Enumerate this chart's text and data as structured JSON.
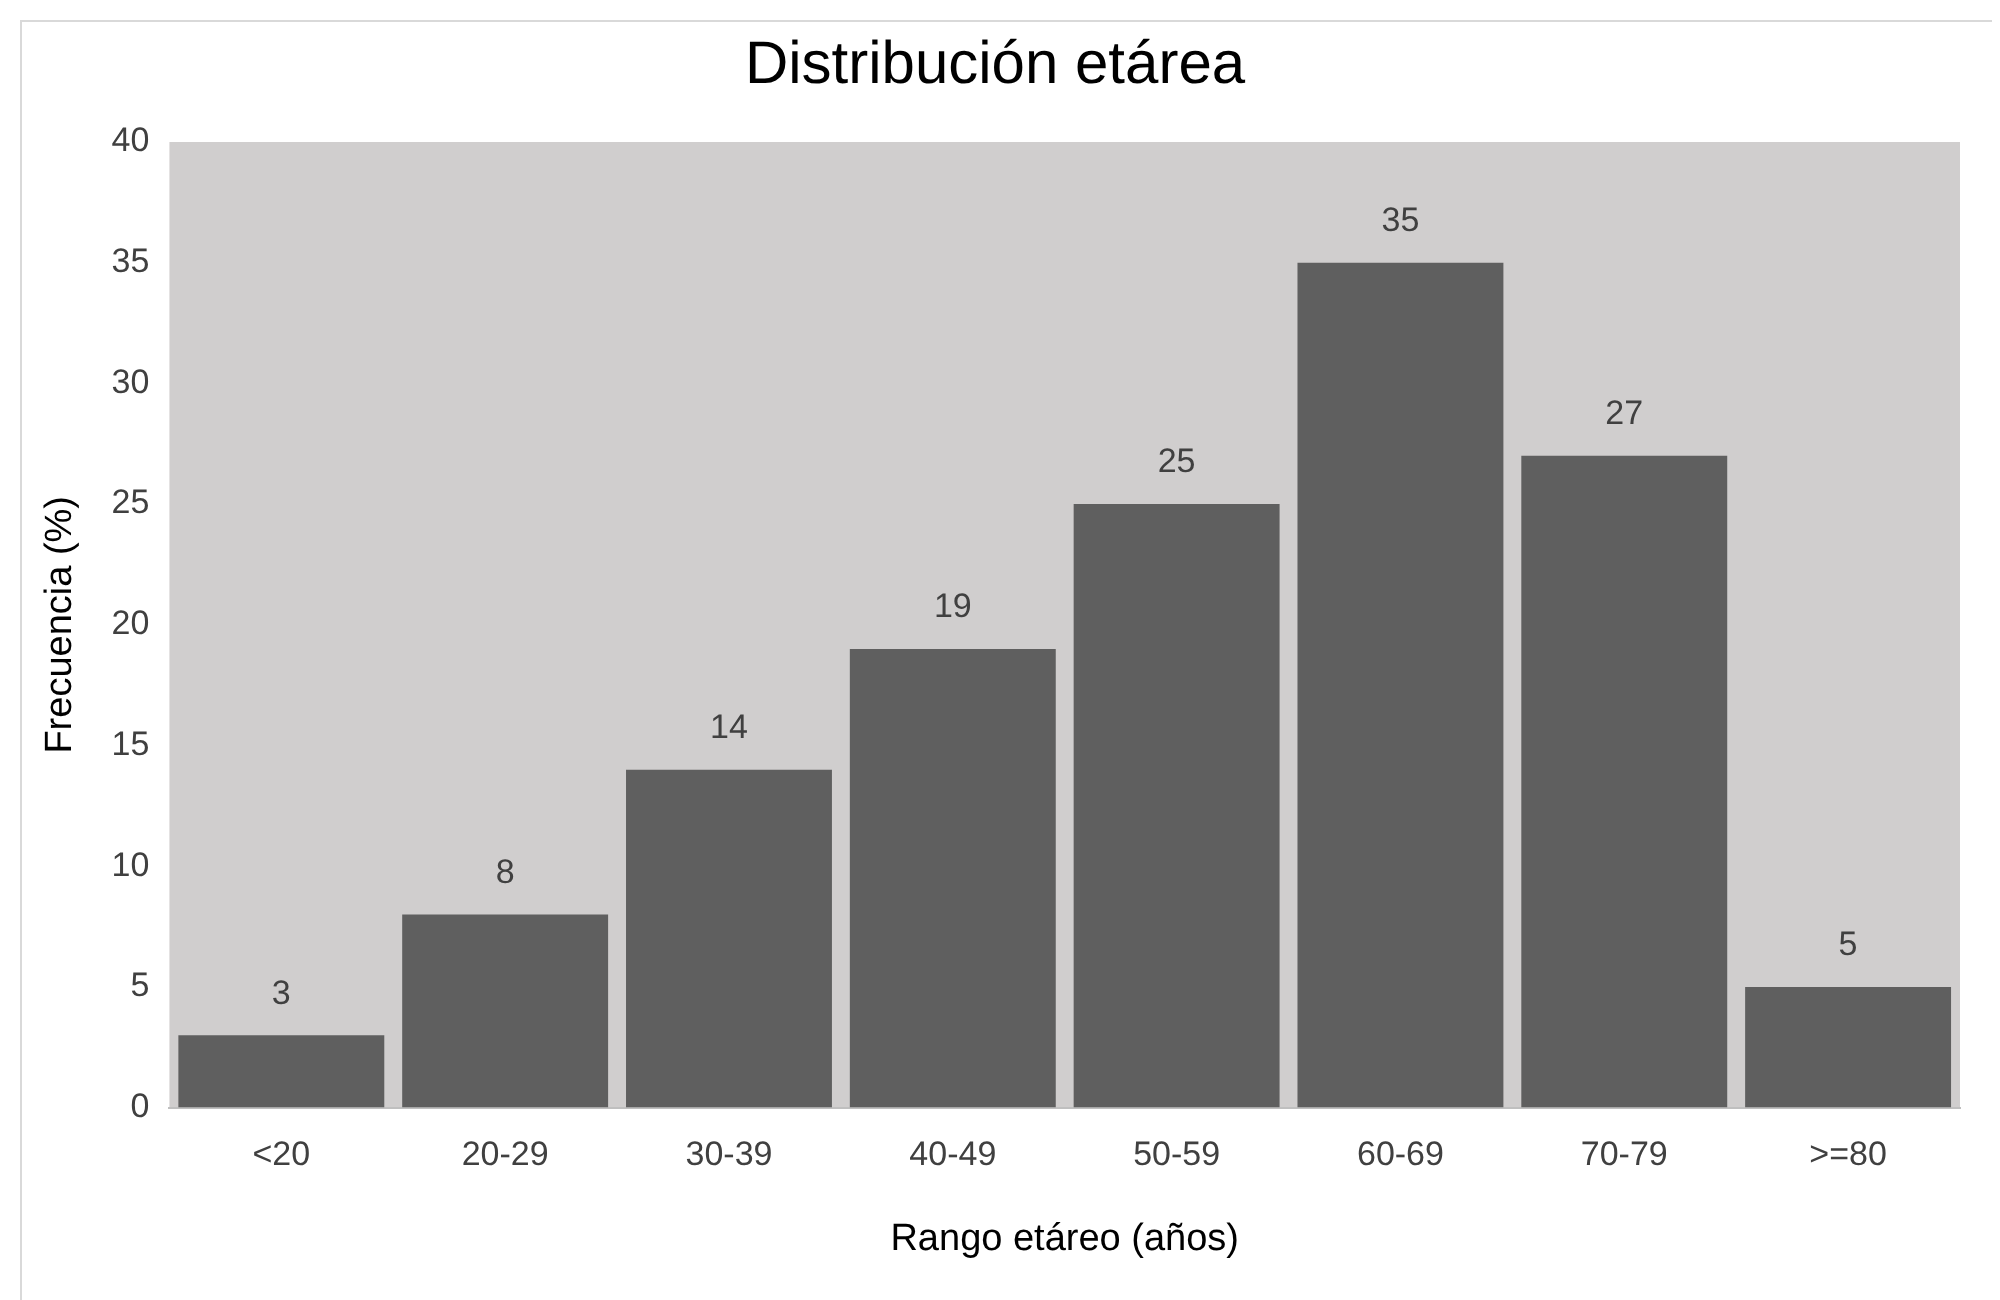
{
  "chart_data": {
    "type": "bar",
    "title": "Distribución etárea",
    "xlabel": "Rango etáreo (años)",
    "ylabel": "Frecuencia (%)",
    "categories": [
      "<20",
      "20-29",
      "30-39",
      "40-49",
      "50-59",
      "60-69",
      "70-79",
      ">=80"
    ],
    "values": [
      3,
      8,
      14,
      19,
      25,
      35,
      27,
      5
    ],
    "color": "#5f5f5f",
    "ylim": [
      0,
      40
    ],
    "yticks": [
      0,
      5,
      10,
      15,
      20,
      25,
      30,
      35,
      40
    ],
    "grid": false,
    "legend": false,
    "data_labels": true
  }
}
